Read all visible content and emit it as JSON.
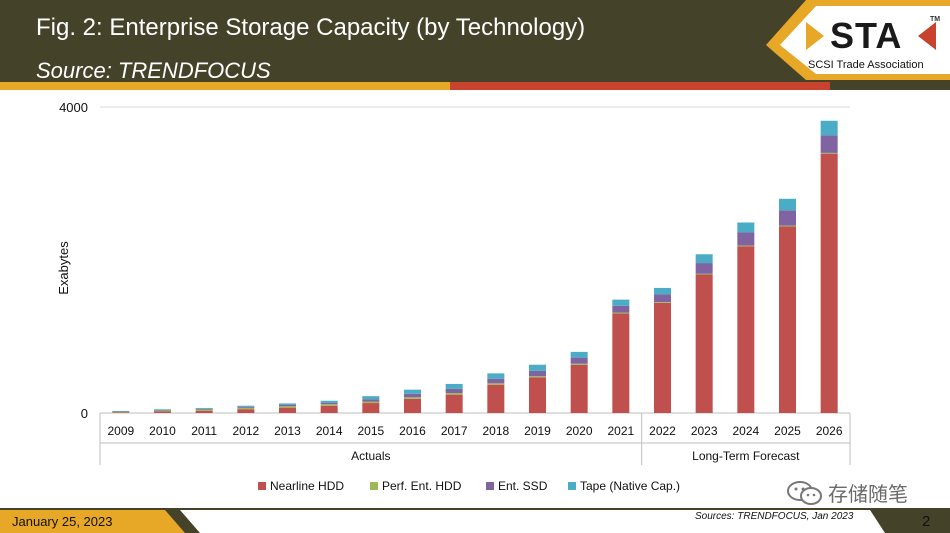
{
  "header": {
    "title": "Fig. 2: Enterprise Storage Capacity (by Technology)",
    "subtitle": "Source: TRENDFOCUS"
  },
  "logo": {
    "name": "STA",
    "tm": "TM",
    "tagline": "SCSI Trade Association"
  },
  "footer": {
    "date": "January 25, 2023",
    "sources": "Sources: TRENDFOCUS, Jan 2023",
    "page": "2"
  },
  "watermark": "存储随笔",
  "colors": {
    "nearline": "#c0504d",
    "perf": "#9bbb59",
    "ssd": "#8064a2",
    "tape": "#4bacc6",
    "header_bg": "#44432a",
    "gold": "#e7a727",
    "red": "#c8432d"
  },
  "chart_data": {
    "type": "bar",
    "stacked": true,
    "title": "Enterprise Storage Capacity (by Technology)",
    "ylabel": "Exabytes",
    "ylim": [
      0,
      4000
    ],
    "yticks": [
      "0",
      "4000"
    ],
    "categories": [
      "2009",
      "2010",
      "2011",
      "2012",
      "2013",
      "2014",
      "2015",
      "2016",
      "2017",
      "2018",
      "2019",
      "2020",
      "2021",
      "2022",
      "2023",
      "2024",
      "2025",
      "2026"
    ],
    "groups": [
      {
        "label": "Actuals",
        "from": 0,
        "to": 12
      },
      {
        "label": "Long-Term Forecast",
        "from": 13,
        "to": 17
      }
    ],
    "series": [
      {
        "name": "Nearline HDD",
        "color": "#c0504d",
        "values": [
          8,
          20,
          30,
          50,
          70,
          95,
          130,
          185,
          240,
          370,
          465,
          630,
          1300,
          1440,
          1810,
          2180,
          2440,
          3390
        ]
      },
      {
        "name": "Perf. Ent. HDD",
        "color": "#9bbb59",
        "values": [
          10,
          14,
          16,
          18,
          20,
          20,
          20,
          20,
          20,
          18,
          16,
          14,
          12,
          10,
          10,
          10,
          10,
          10
        ]
      },
      {
        "name": "Ent. SSD",
        "color": "#8064a2",
        "values": [
          2,
          4,
          8,
          12,
          15,
          20,
          30,
          45,
          55,
          60,
          70,
          80,
          90,
          100,
          140,
          170,
          200,
          230
        ]
      },
      {
        "name": "Tape (Native Cap.)",
        "color": "#4bacc6",
        "values": [
          5,
          10,
          12,
          15,
          20,
          25,
          40,
          55,
          65,
          70,
          80,
          75,
          80,
          85,
          115,
          130,
          150,
          190
        ]
      }
    ],
    "legend_position": "bottom"
  }
}
